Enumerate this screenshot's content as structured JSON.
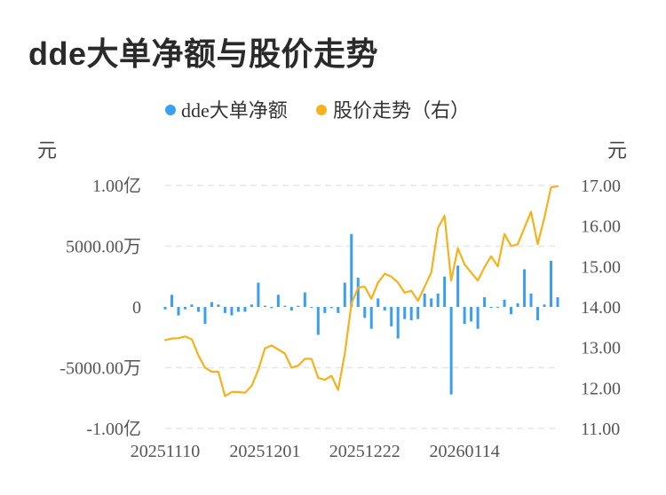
{
  "page": {
    "title": "dde大单净额与股价走势"
  },
  "colors": {
    "bar": "#3a9ff0",
    "line": "#f5b21a",
    "grid": "#e6e6e6"
  },
  "chart_data": {
    "type": "bar+line",
    "title": "dde大单净额与股价走势",
    "left_axis": {
      "unit": "元",
      "min": -10000,
      "max": 10000,
      "ticks": [
        10000,
        5000,
        0,
        -5000,
        -10000
      ],
      "tick_labels": [
        "1.00亿",
        "5000.00万",
        "0",
        "-5000.00万",
        "-1.00亿"
      ]
    },
    "right_axis": {
      "unit": "元",
      "min": 11,
      "max": 17,
      "ticks": [
        17,
        16,
        15,
        14,
        13,
        12,
        11
      ],
      "tick_labels": [
        "17.00",
        "16.00",
        "15.00",
        "14.00",
        "13.00",
        "12.00",
        "11.00"
      ]
    },
    "x_tick_labels": [
      {
        "label": "20251110",
        "index": 0
      },
      {
        "label": "20251201",
        "index": 15
      },
      {
        "label": "20251222",
        "index": 30
      },
      {
        "label": "20260114",
        "index": 45
      }
    ],
    "grid": true,
    "legend_position": "top-center",
    "series": [
      {
        "name": "dde大单净额",
        "type": "bar",
        "axis": "left",
        "unit": "万元",
        "values": [
          -200,
          1000,
          -700,
          -200,
          200,
          -400,
          -1400,
          400,
          200,
          -500,
          -700,
          -400,
          -400,
          200,
          2000,
          100,
          -100,
          1000,
          100,
          -300,
          100,
          1200,
          0,
          -2300,
          -500,
          -100,
          -500,
          2000,
          6000,
          2400,
          -900,
          -1800,
          700,
          -300,
          -1600,
          -2600,
          -1000,
          -1100,
          -1000,
          1100,
          700,
          1100,
          2500,
          -7200,
          3400,
          -1400,
          -1200,
          -1800,
          800,
          0,
          0,
          600,
          -600,
          300,
          3100,
          1100,
          -1100,
          200,
          3800,
          800
        ]
      },
      {
        "name": "股价走势（右）",
        "type": "line",
        "axis": "right",
        "unit": "元",
        "values": [
          13.18,
          13.22,
          13.23,
          13.27,
          13.2,
          12.8,
          12.5,
          12.4,
          12.4,
          11.8,
          11.9,
          11.9,
          11.88,
          12.05,
          12.45,
          12.98,
          13.05,
          12.95,
          12.85,
          12.5,
          12.55,
          12.72,
          12.72,
          12.25,
          12.2,
          12.3,
          11.95,
          12.85,
          14.08,
          14.48,
          14.5,
          14.2,
          14.6,
          14.82,
          14.75,
          14.6,
          14.35,
          14.4,
          14.15,
          14.5,
          14.85,
          15.95,
          16.25,
          14.65,
          15.45,
          15.05,
          14.85,
          14.65,
          14.98,
          15.25,
          15.0,
          15.8,
          15.5,
          15.55,
          15.95,
          16.35,
          15.55,
          16.2,
          16.95,
          16.98
        ]
      }
    ]
  }
}
